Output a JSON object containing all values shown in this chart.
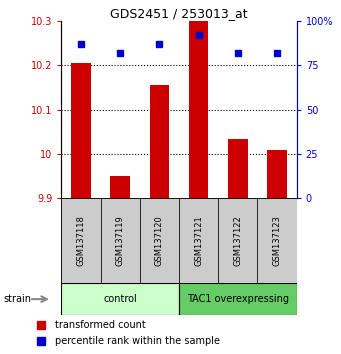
{
  "title": "GDS2451 / 253013_at",
  "samples": [
    "GSM137118",
    "GSM137119",
    "GSM137120",
    "GSM137121",
    "GSM137122",
    "GSM137123"
  ],
  "red_values": [
    10.205,
    9.95,
    10.155,
    10.3,
    10.035,
    10.01
  ],
  "blue_values": [
    87,
    82,
    87,
    92,
    82,
    82
  ],
  "ymin": 9.9,
  "ymax": 10.3,
  "yticks": [
    9.9,
    10.0,
    10.1,
    10.2,
    10.3
  ],
  "ytick_labels": [
    "9.9",
    "10",
    "10.1",
    "10.2",
    "10.3"
  ],
  "y2min": 0,
  "y2max": 100,
  "y2ticks": [
    0,
    25,
    50,
    75,
    100
  ],
  "y2tick_labels": [
    "0",
    "25",
    "50",
    "75",
    "100%"
  ],
  "bar_color": "#cc0000",
  "dot_color": "#0000cc",
  "bar_width": 0.5,
  "groups": [
    {
      "label": "control",
      "indices": [
        0,
        1,
        2
      ],
      "color": "#ccffcc"
    },
    {
      "label": "TAC1 overexpressing",
      "indices": [
        3,
        4,
        5
      ],
      "color": "#66cc66"
    }
  ],
  "group_label": "strain",
  "left_tick_color": "#cc0000",
  "right_tick_color": "#0000cc",
  "sample_box_color": "#cccccc",
  "legend_items": [
    {
      "color": "#cc0000",
      "label": "transformed count"
    },
    {
      "color": "#0000cc",
      "label": "percentile rank within the sample"
    }
  ]
}
